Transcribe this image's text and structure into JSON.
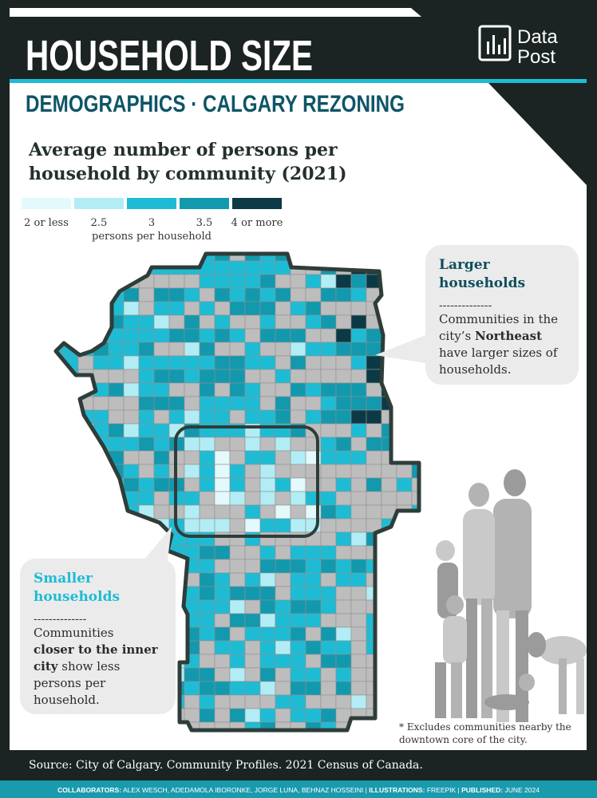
{
  "header": {
    "title": "HOUSEHOLD SIZE",
    "subtitle": "DEMOGRAPHICS · CALGARY REZONING",
    "logo": [
      "Data",
      "Post"
    ]
  },
  "map": {
    "title": [
      "Average number of persons per",
      "household by community (2021)"
    ],
    "legend": {
      "items": [
        {
          "label": "2 or less",
          "color": "#e4f9fc"
        },
        {
          "label": "2.5",
          "color": "#b2edf5"
        },
        {
          "label": "3",
          "color": "#1ebcd4"
        },
        {
          "label": "3.5",
          "color": "#1299ae"
        },
        {
          "label": "4 or more",
          "color": "#0b3a46"
        }
      ],
      "unit": "persons per household"
    },
    "note": [
      "* Excludes communities nearby the",
      "downtown core of the city."
    ]
  },
  "callouts": [
    {
      "title": [
        "Larger",
        "households"
      ],
      "divider": "--------------",
      "body": [
        [
          {
            "text": "Communities in the"
          }
        ],
        [
          {
            "text": "city’s "
          },
          {
            "text": "Northeast",
            "bold": true
          }
        ],
        [
          {
            "text": "have larger sizes of"
          }
        ],
        [
          {
            "text": "households."
          }
        ]
      ]
    },
    {
      "title": [
        "Smaller",
        "households"
      ],
      "divider": "--------------",
      "body": [
        [
          {
            "text": "Communities"
          }
        ],
        [
          {
            "text": "closer to the inner",
            "bold": true
          }
        ],
        [
          {
            "text": "city",
            "bold": true
          },
          {
            "text": " show less"
          }
        ],
        [
          {
            "text": "persons per"
          }
        ],
        [
          {
            "text": "household."
          }
        ]
      ]
    }
  ],
  "source": "Source: City of Calgary. Community Profiles. 2021 Census of Canada.",
  "footer": [
    {
      "key": "COLLABORATORS:",
      "value": "ALEX WESCH, ADEDAMOLA IBORONKE, JORGE LUNA, BEHNAZ HOSSEINI"
    },
    {
      "key": "ILLUSTRATIONS:",
      "value": "FREEPIK"
    },
    {
      "key": "PUBLISHED:",
      "value": "JUNE 2024"
    }
  ]
}
